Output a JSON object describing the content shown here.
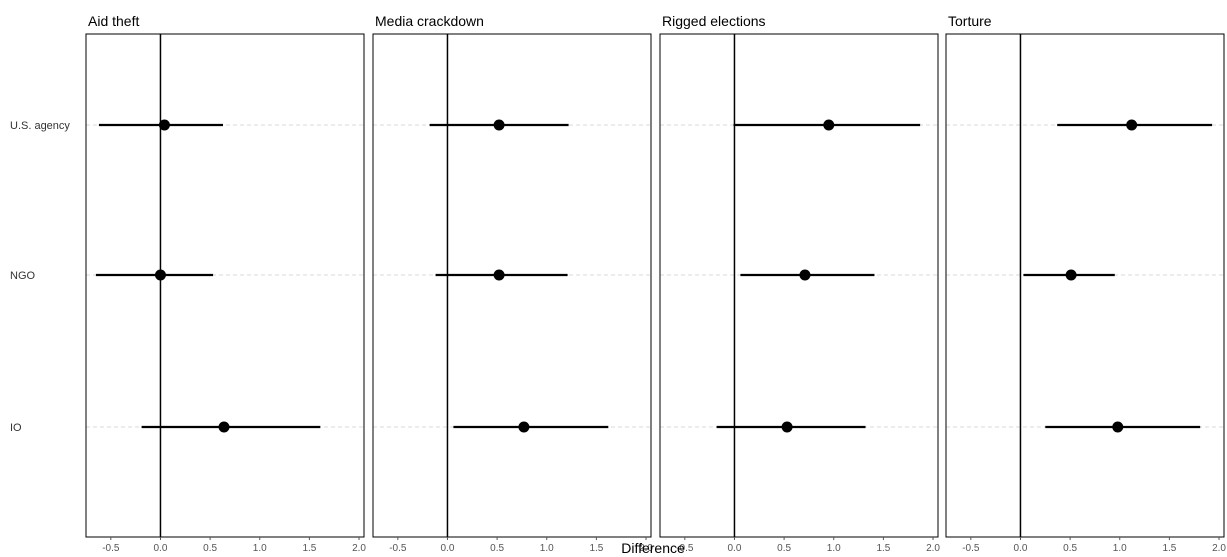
{
  "chart_data": {
    "type": "forest",
    "xlabel": "Difference",
    "xlim": [
      -0.75,
      2.05
    ],
    "xticks": [
      -0.5,
      0.0,
      0.5,
      1.0,
      1.5,
      2.0
    ],
    "xtick_labels": [
      "-0.5",
      "0.0",
      "0.5",
      "1.0",
      "1.5",
      "2.0"
    ],
    "reference_line": 0,
    "categories": [
      "U.S. agency",
      "NGO",
      "IO"
    ],
    "grid": "horizontal dashed",
    "panels": [
      {
        "title": "Aid theft",
        "estimates": [
          {
            "category": "U.S. agency",
            "estimate": 0.04,
            "low": -0.62,
            "high": 0.63
          },
          {
            "category": "NGO",
            "estimate": 0.0,
            "low": -0.65,
            "high": 0.53
          },
          {
            "category": "IO",
            "estimate": 0.64,
            "low": -0.19,
            "high": 1.61
          }
        ]
      },
      {
        "title": "Media crackdown",
        "estimates": [
          {
            "category": "U.S. agency",
            "estimate": 0.52,
            "low": -0.18,
            "high": 1.22
          },
          {
            "category": "NGO",
            "estimate": 0.52,
            "low": -0.12,
            "high": 1.21
          },
          {
            "category": "IO",
            "estimate": 0.77,
            "low": 0.06,
            "high": 1.62
          }
        ]
      },
      {
        "title": "Rigged elections",
        "estimates": [
          {
            "category": "U.S. agency",
            "estimate": 0.95,
            "low": -0.01,
            "high": 1.87
          },
          {
            "category": "NGO",
            "estimate": 0.71,
            "low": 0.06,
            "high": 1.41
          },
          {
            "category": "IO",
            "estimate": 0.53,
            "low": -0.18,
            "high": 1.32
          }
        ]
      },
      {
        "title": "Torture",
        "estimates": [
          {
            "category": "U.S. agency",
            "estimate": 1.12,
            "low": 0.37,
            "high": 1.93
          },
          {
            "category": "NGO",
            "estimate": 0.51,
            "low": 0.03,
            "high": 0.95
          },
          {
            "category": "IO",
            "estimate": 0.98,
            "low": 0.25,
            "high": 1.81
          }
        ]
      }
    ]
  }
}
